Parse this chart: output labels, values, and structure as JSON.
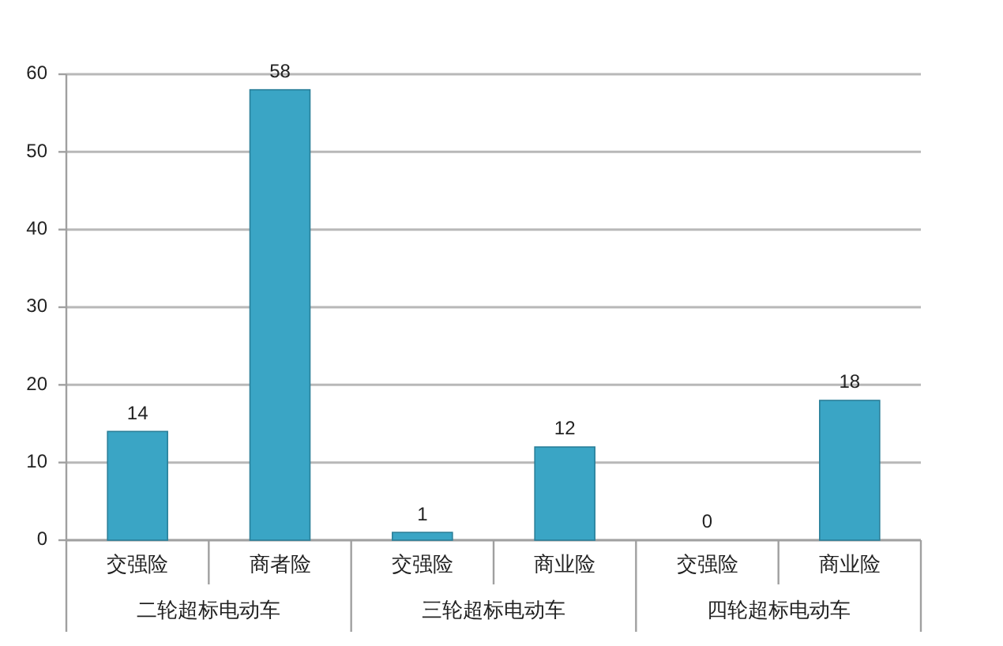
{
  "chart_data": {
    "type": "bar",
    "categories": [
      "交强险",
      "商者险",
      "交强险",
      "商业险",
      "交强险",
      "商业险"
    ],
    "values": [
      14,
      58,
      1,
      12,
      0,
      18
    ],
    "color": "#3aa5c5",
    "ylim": [
      0,
      60
    ],
    "yticks": [
      0,
      10,
      20,
      30,
      40,
      50,
      60
    ],
    "grid": "y",
    "data_labels": true,
    "annotations": [
      "二轮超标电动车",
      "三轮超标电动车",
      "四轮超标电动车"
    ]
  }
}
